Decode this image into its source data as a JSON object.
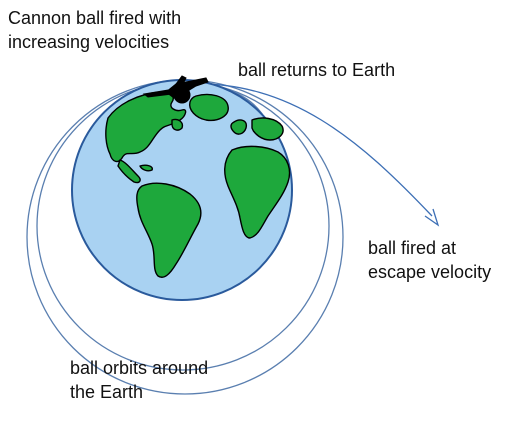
{
  "labels": {
    "cannon_line1": "Cannon ball fired with",
    "cannon_line2": "increasing velocities",
    "returns": "ball  returns to Earth",
    "escape_line1": "ball fired  at",
    "escape_line2": "escape velocity",
    "orbits_line1": "ball orbits around",
    "orbits_line2": "the Earth"
  },
  "colors": {
    "ocean": "#a9d2f2",
    "ocean_edge": "#2a5a9c",
    "land": "#1ea83c",
    "land_edge": "#000000",
    "orbit_line": "#5a7fb0",
    "escape_arrow": "#3d6fb5",
    "cannon": "#000000"
  },
  "icons": {
    "cannon": "cannon-icon",
    "earth": "earth-globe"
  }
}
